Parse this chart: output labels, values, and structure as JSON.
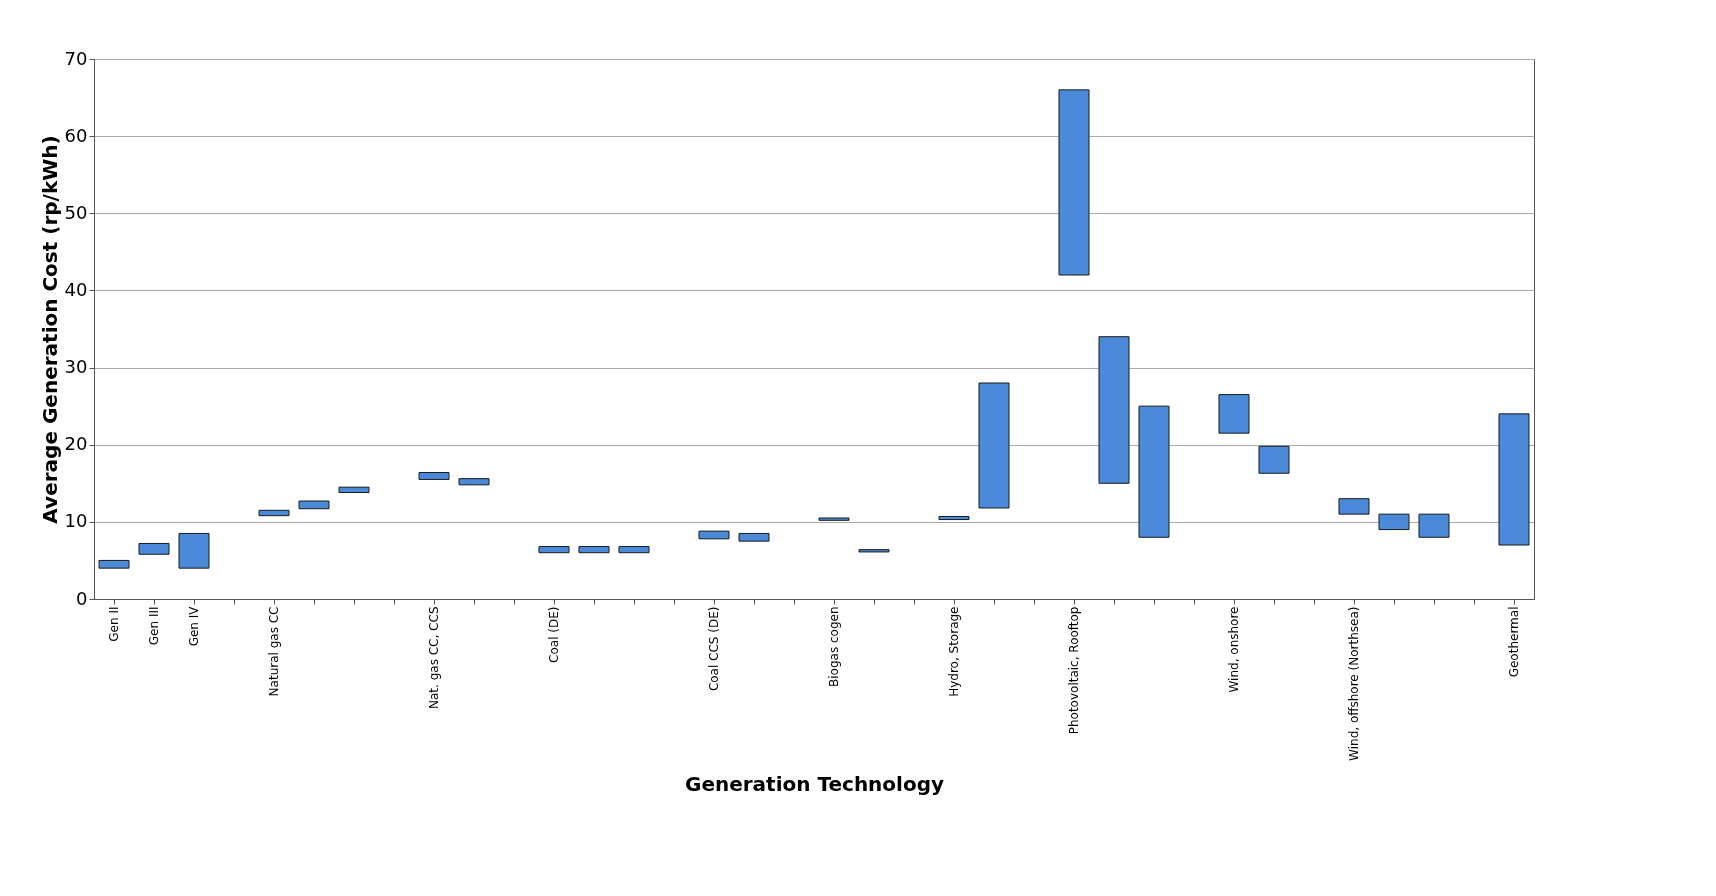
{
  "chart_data": {
    "type": "bar",
    "xlabel": "Generation Technology",
    "ylabel": "Average Generation Cost (rp/kWh)",
    "categories": [
      "Gen II",
      "Gen III",
      "Gen IV",
      null,
      "Natural gas CC",
      null,
      null,
      null,
      "Nat. gas CC, CCS",
      null,
      null,
      "Coal (DE)",
      null,
      null,
      null,
      "Coal CCS (DE)",
      null,
      null,
      "Biogas cogen",
      null,
      null,
      "Hydro, Storage",
      null,
      null,
      "Photovoltaic, Rooftop",
      null,
      null,
      null,
      "Wind, onshore",
      null,
      null,
      "Wind, offshore (Northsea)",
      null,
      null,
      null,
      "Geothermal"
    ],
    "base": [
      4,
      5.8,
      4,
      null,
      10.8,
      11.7,
      13.8,
      null,
      15.5,
      14.8,
      null,
      6,
      6,
      6,
      null,
      7.8,
      7.5,
      null,
      10.2,
      6.1,
      null,
      10.3,
      11.8,
      null,
      42,
      15,
      8,
      null,
      21.5,
      16.3,
      null,
      11,
      9,
      8,
      null,
      7
    ],
    "values": [
      1,
      1.4,
      4.5,
      null,
      0.7,
      1,
      0.7,
      null,
      0.9,
      0.8,
      null,
      0.8,
      0.8,
      0.8,
      null,
      1,
      1,
      null,
      0.3,
      0.3,
      null,
      0.4,
      16.2,
      null,
      24,
      19,
      17,
      null,
      5,
      3.5,
      null,
      2,
      2,
      3,
      null,
      17
    ],
    "color": "#4a8ad8",
    "ylim": [
      0,
      70
    ],
    "yticks": [
      0,
      10,
      20,
      30,
      40,
      50,
      60,
      70
    ],
    "grid": "y"
  }
}
